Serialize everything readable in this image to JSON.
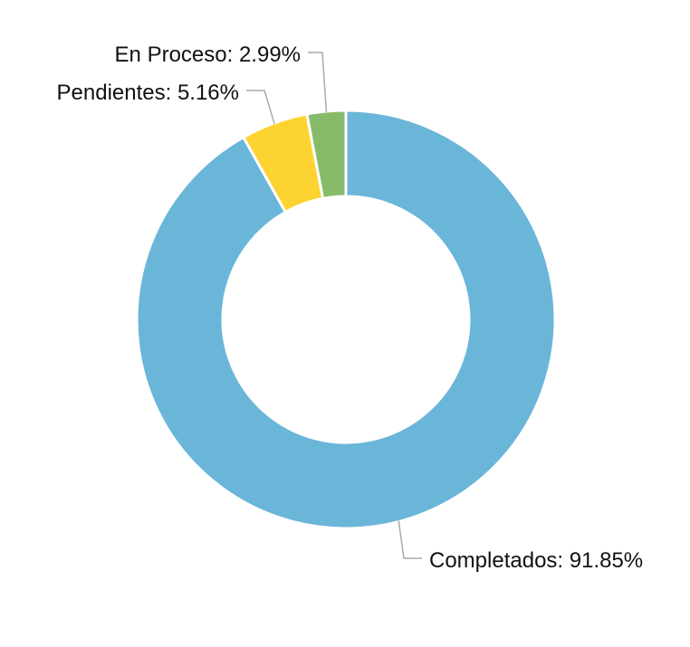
{
  "chart_data": {
    "type": "pie",
    "variant": "donut",
    "slices": [
      {
        "label": "Completados",
        "value": 91.85,
        "display": "Completados: 91.85%",
        "color": "#6ab6d9"
      },
      {
        "label": "Pendientes",
        "value": 5.16,
        "display": "Pendientes: 5.16%",
        "color": "#fcd331"
      },
      {
        "label": "En Proceso",
        "value": 2.99,
        "display": "En Proceso: 2.99%",
        "color": "#87bb69"
      }
    ],
    "start_angle": "top",
    "direction": "clockwise",
    "label_color": "#111111",
    "leader_color": "#aaaaaa",
    "background": "#ffffff"
  }
}
